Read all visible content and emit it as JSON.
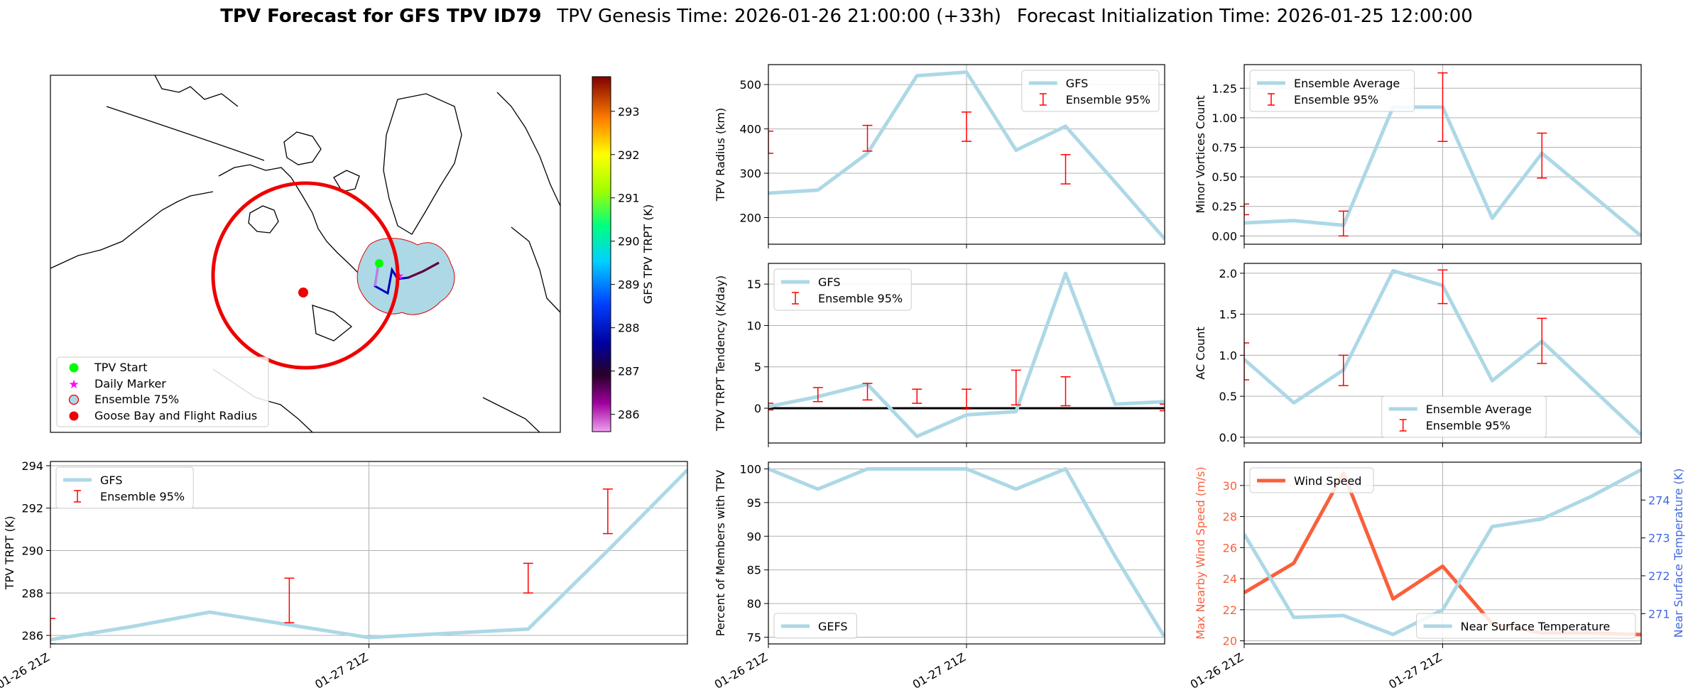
{
  "title": {
    "bold": "TPV Forecast for GFS TPV ID79",
    "genesis": "TPV Genesis Time: 2026-01-26 21:00:00 (+33h)",
    "init": "Forecast Initialization Time: 2026-01-25 12:00:00"
  },
  "colors": {
    "line": "#add8e6",
    "err": "#ff0000",
    "wind": "#fa5f3c",
    "temp": "#4169e1",
    "grid": "#b0b0b0",
    "zero": "#000000"
  },
  "map": {
    "legend": [
      "TPV Start",
      "Daily Marker",
      "Ensemble 75%",
      "Goose Bay and Flight Radius"
    ],
    "colorbar_label": "GFS TPV TRPT (K)",
    "colorbar_ticks": [
      286,
      287,
      288,
      289,
      290,
      291,
      292,
      293
    ],
    "colorbar_range": [
      285.6,
      293.8
    ]
  },
  "chart_data": [
    {
      "id": "trpt",
      "type": "line",
      "ylabel": "TPV TRPT (K)",
      "x": [
        0,
        1,
        2,
        3,
        4,
        5,
        6,
        7,
        8
      ],
      "xlim": [
        0,
        8
      ],
      "ylim": [
        285.6,
        294.2
      ],
      "yticks": [
        286,
        288,
        290,
        292,
        294
      ],
      "xticks": [
        0,
        4
      ],
      "xticklabels": [
        "01-26 21Z",
        "01-27 21Z"
      ],
      "series": [
        {
          "name": "GFS",
          "values": [
            285.8,
            286.4,
            287.1,
            286.5,
            285.9,
            286.1,
            286.3,
            290.0,
            293.8
          ]
        }
      ],
      "errorbars": {
        "name": "Ensemble 95%",
        "x": [
          0,
          3,
          6,
          7
        ],
        "low": [
          285.6,
          286.6,
          288.0,
          290.8
        ],
        "high": [
          286.8,
          288.7,
          289.4,
          292.9
        ]
      }
    },
    {
      "id": "radius",
      "type": "line",
      "ylabel": "TPV Radius (km)",
      "x": [
        0,
        1,
        2,
        3,
        4,
        5,
        6,
        7,
        8
      ],
      "xlim": [
        0,
        8
      ],
      "ylim": [
        140,
        545
      ],
      "yticks": [
        200,
        300,
        400,
        500
      ],
      "xticks": [
        0,
        4
      ],
      "xticklabels": [],
      "series": [
        {
          "name": "GFS",
          "values": [
            255,
            262,
            345,
            520,
            528,
            352,
            406,
            280,
            152
          ]
        }
      ],
      "errorbars": {
        "name": "Ensemble 95%",
        "x": [
          0,
          2,
          4,
          6
        ],
        "low": [
          345,
          350,
          372,
          276
        ],
        "high": [
          395,
          408,
          438,
          342
        ]
      }
    },
    {
      "id": "tendency",
      "type": "line",
      "ylabel": "TPV TRPT Tendency (K/day)",
      "x": [
        0,
        1,
        2,
        3,
        4,
        5,
        6,
        7,
        8
      ],
      "xlim": [
        0,
        8
      ],
      "ylim": [
        -4.2,
        17.5
      ],
      "yticks": [
        0,
        5,
        10,
        15
      ],
      "xticks": [
        0,
        4
      ],
      "xticklabels": [],
      "zero_line": true,
      "series": [
        {
          "name": "GFS",
          "values": [
            0.2,
            1.4,
            2.9,
            -3.4,
            -0.8,
            -0.4,
            16.3,
            0.5,
            0.8
          ]
        }
      ],
      "errorbars": {
        "name": "Ensemble 95%",
        "x": [
          0,
          1,
          2,
          3,
          4,
          5,
          6,
          8
        ],
        "low": [
          -0.2,
          0.8,
          1.0,
          0.6,
          -0.1,
          0.4,
          0.3,
          -0.3
        ],
        "high": [
          0.6,
          2.5,
          3.0,
          2.3,
          2.3,
          4.6,
          3.8,
          0.5
        ]
      }
    },
    {
      "id": "percent",
      "type": "line",
      "ylabel": "Percent of Members with TPV",
      "x": [
        0,
        1,
        2,
        3,
        4,
        5,
        6,
        7,
        8
      ],
      "xlim": [
        0,
        8
      ],
      "ylim": [
        74,
        101
      ],
      "yticks": [
        75,
        80,
        85,
        90,
        95,
        100
      ],
      "xticks": [
        0,
        4
      ],
      "xticklabels": [
        "01-26 21Z",
        "01-27 21Z"
      ],
      "series": [
        {
          "name": "GEFS",
          "values": [
            100,
            97,
            100,
            100,
            100,
            97,
            100,
            87,
            75
          ]
        }
      ]
    },
    {
      "id": "minor",
      "type": "line",
      "ylabel": "Minor Vortices Count",
      "x": [
        0,
        1,
        2,
        3,
        4,
        5,
        6,
        7,
        8
      ],
      "xlim": [
        0,
        8
      ],
      "ylim": [
        -0.07,
        1.45
      ],
      "yticks": [
        0.0,
        0.25,
        0.5,
        0.75,
        1.0,
        1.25
      ],
      "xticks": [
        0,
        4
      ],
      "xticklabels": [],
      "series": [
        {
          "name": "Ensemble Average",
          "values": [
            0.11,
            0.13,
            0.09,
            1.09,
            1.09,
            0.15,
            0.7,
            0.35,
            0.0
          ]
        }
      ],
      "errorbars": {
        "name": "Ensemble 95%",
        "x": [
          0,
          2,
          4,
          6
        ],
        "low": [
          0.18,
          0.0,
          0.8,
          0.49
        ],
        "high": [
          0.27,
          0.21,
          1.38,
          0.87
        ]
      }
    },
    {
      "id": "ac",
      "type": "line",
      "ylabel": "AC Count",
      "x": [
        0,
        1,
        2,
        3,
        4,
        5,
        6,
        7,
        8
      ],
      "xlim": [
        0,
        8
      ],
      "ylim": [
        -0.07,
        2.12
      ],
      "yticks": [
        0.0,
        0.5,
        1.0,
        1.5,
        2.0
      ],
      "xticks": [
        0,
        4
      ],
      "xticklabels": [],
      "series": [
        {
          "name": "Ensemble Average",
          "values": [
            0.95,
            0.42,
            0.82,
            2.03,
            1.85,
            0.69,
            1.17,
            0.6,
            0.03
          ]
        }
      ],
      "errorbars": {
        "name": "Ensemble 95%",
        "x": [
          0,
          2,
          4,
          6
        ],
        "low": [
          0.7,
          0.63,
          1.63,
          0.9
        ],
        "high": [
          1.15,
          1.0,
          2.04,
          1.45
        ]
      }
    },
    {
      "id": "wind",
      "type": "line",
      "ylabel": "Max Nearby Wind Speed (m/s)",
      "y2label": "Near Surface Temperature (K)",
      "x": [
        0,
        1,
        2,
        3,
        4,
        5,
        6,
        7,
        8
      ],
      "xlim": [
        0,
        8
      ],
      "ylim": [
        19.8,
        31.5
      ],
      "yticks": [
        20,
        22,
        24,
        26,
        28,
        30
      ],
      "y2lim": [
        270.2,
        275.0
      ],
      "y2ticks": [
        271,
        272,
        273,
        274
      ],
      "xticks": [
        0,
        4
      ],
      "xticklabels": [
        "01-26 21Z",
        "01-27 21Z"
      ],
      "series": [
        {
          "name": "Wind Speed",
          "axis": "left",
          "values": [
            23.1,
            25.0,
            30.8,
            22.7,
            24.8,
            21.1,
            20.5,
            20.5,
            20.4
          ]
        },
        {
          "name": "Near Surface Temperature",
          "axis": "right",
          "values": [
            273.1,
            270.9,
            270.95,
            270.45,
            271.1,
            273.3,
            273.5,
            274.1,
            274.8
          ]
        }
      ]
    }
  ]
}
